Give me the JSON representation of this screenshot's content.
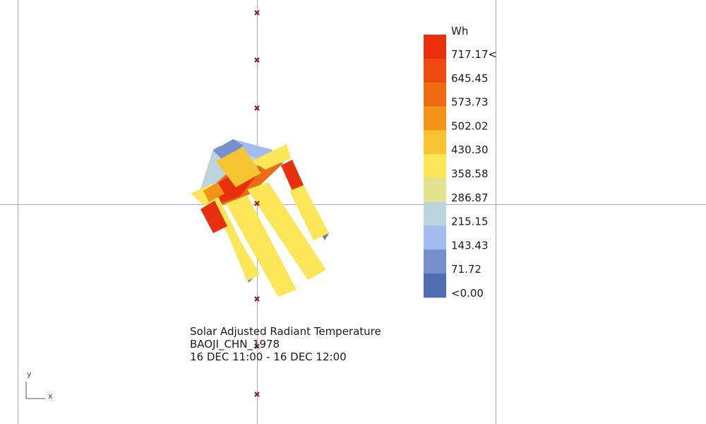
{
  "legend": {
    "unit": "Wh",
    "levels": [
      {
        "label": "717.17<",
        "color": "#e8300f"
      },
      {
        "label": "645.45",
        "color": "#ec4a10"
      },
      {
        "label": "573.73",
        "color": "#ef6b12"
      },
      {
        "label": "502.02",
        "color": "#f39418"
      },
      {
        "label": "430.30",
        "color": "#f6c431"
      },
      {
        "label": "358.58",
        "color": "#fbe657"
      },
      {
        "label": "286.87",
        "color": "#e3e38f"
      },
      {
        "label": "215.15",
        "color": "#bcd4de"
      },
      {
        "label": "143.43",
        "color": "#a3bdee"
      },
      {
        "label": "71.72",
        "color": "#7691ca"
      },
      {
        "label": "<0.00",
        "color": "#4f6eb0"
      }
    ]
  },
  "caption": {
    "title": "Solar Adjusted Radiant Temperature",
    "location": "BAOJI_CHN_1978",
    "period": "16 DEC 11:00 - 16 DEC 12:00"
  },
  "axes": {
    "x_label": "x",
    "y_label": "y"
  },
  "colors": {
    "grid_line": "#a8a8a8",
    "marker": "#9b1b1b",
    "outline": "#6b6b6b"
  }
}
